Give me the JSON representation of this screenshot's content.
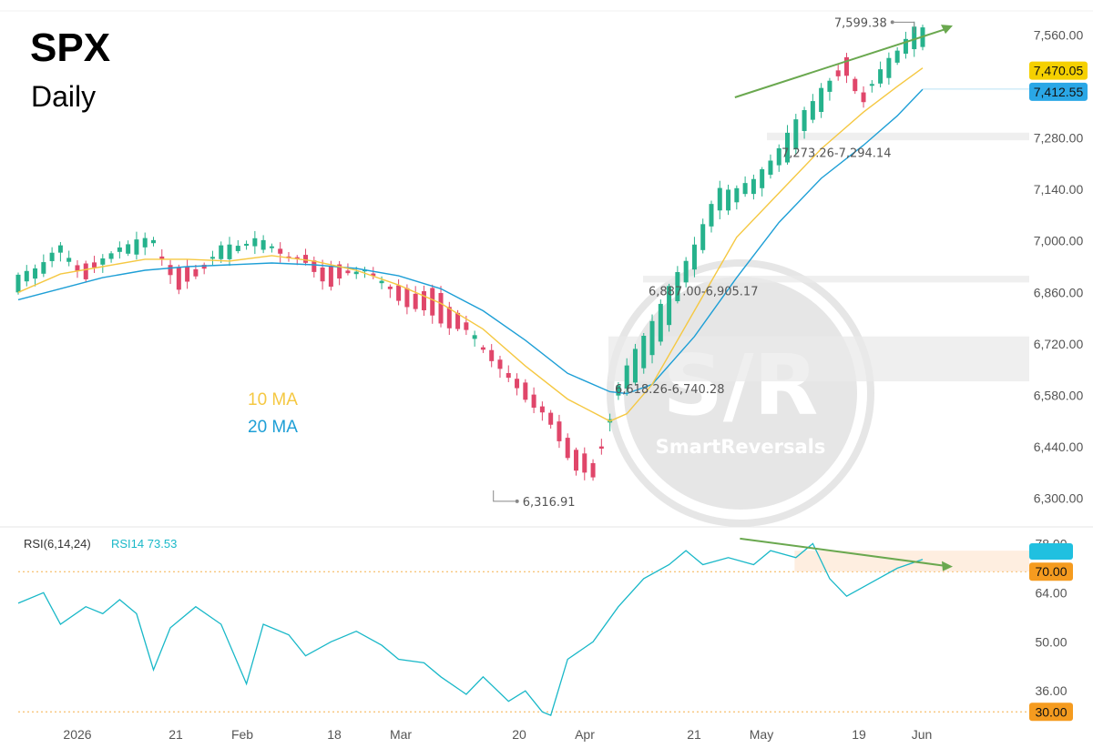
{
  "header": {
    "ticker": "SPX",
    "period": "Daily"
  },
  "legend": {
    "ma10": "10 MA",
    "ma20": "20 MA"
  },
  "watermark": {
    "big": "S/R",
    "small": "SmartReversals"
  },
  "colors": {
    "up": "#26b28c",
    "down": "#e0466a",
    "ma10": "#f5c842",
    "ma20": "#1e9fd6",
    "rsi": "#19b8c8",
    "arrow": "#6aa84f",
    "badge_ma10": "#f5d000",
    "badge_ma20": "#2aa7e6",
    "badge_level": "#f59b1f",
    "badge_rsi": "#20c0e0"
  },
  "chart_data": [
    {
      "type": "candlestick",
      "title": "SPX Daily",
      "y_ticks": [
        "7,560.00",
        "7,280.00",
        "7,140.00",
        "7,000.00",
        "6,860.00",
        "6,720.00",
        "6,580.00",
        "6,440.00",
        "6,300.00"
      ],
      "y_tick_values": [
        7560,
        7280,
        7140,
        7000,
        6860,
        6720,
        6580,
        6440,
        6300
      ],
      "ylim": [
        6240,
        7620
      ],
      "x_ticks": [
        "2026",
        "21",
        "Feb",
        "18",
        "Mar",
        "20",
        "Apr",
        "21",
        "May",
        "19",
        "Jun"
      ],
      "badges": {
        "ma10": "7,470.05",
        "ma20": "7,412.55"
      },
      "high_label": "7,599.38",
      "low_label": "6,316.91",
      "sr_zones": [
        {
          "label": "7,273.26-7,294.14",
          "range": [
            7273.26,
            7294.14
          ]
        },
        {
          "label": "6,887.00-6,905.17",
          "range": [
            6887.0,
            6905.17
          ]
        },
        {
          "label": "6,618.26-6,740.28",
          "range": [
            6618.26,
            6740.28
          ]
        }
      ],
      "anchors": [
        [
          0,
          6860,
          6900
        ],
        [
          5,
          6960,
          6980
        ],
        [
          8,
          6930,
          6900
        ],
        [
          12,
          6960,
          6990
        ],
        [
          16,
          6985,
          7005
        ],
        [
          19,
          6920,
          6860
        ],
        [
          24,
          6950,
          6980
        ],
        [
          28,
          6990,
          7005
        ],
        [
          33,
          6960,
          6950
        ],
        [
          37,
          6930,
          6880
        ],
        [
          41,
          6915,
          6930
        ],
        [
          45,
          6870,
          6840
        ],
        [
          50,
          6860,
          6780
        ],
        [
          54,
          6740,
          6740
        ],
        [
          58,
          6650,
          6620
        ],
        [
          62,
          6560,
          6530
        ],
        [
          66,
          6440,
          6380
        ],
        [
          68,
          6390,
          6350
        ],
        [
          71,
          6570,
          6610
        ],
        [
          75,
          6680,
          6790
        ],
        [
          79,
          6880,
          6950
        ],
        [
          83,
          7080,
          7140
        ],
        [
          87,
          7130,
          7160
        ],
        [
          91,
          7220,
          7290
        ],
        [
          95,
          7360,
          7420
        ],
        [
          98,
          7500,
          7450
        ],
        [
          100,
          7400,
          7380
        ],
        [
          103,
          7450,
          7500
        ],
        [
          106,
          7530,
          7575
        ]
      ],
      "ma10": [
        [
          0,
          6860
        ],
        [
          5,
          6910
        ],
        [
          10,
          6930
        ],
        [
          15,
          6950
        ],
        [
          20,
          6950
        ],
        [
          25,
          6945
        ],
        [
          30,
          6960
        ],
        [
          35,
          6945
        ],
        [
          40,
          6920
        ],
        [
          45,
          6880
        ],
        [
          50,
          6830
        ],
        [
          55,
          6760
        ],
        [
          60,
          6660
        ],
        [
          65,
          6570
        ],
        [
          70,
          6510
        ],
        [
          72,
          6530
        ],
        [
          75,
          6610
        ],
        [
          80,
          6810
        ],
        [
          85,
          7010
        ],
        [
          90,
          7130
        ],
        [
          95,
          7250
        ],
        [
          100,
          7350
        ],
        [
          104,
          7420
        ],
        [
          107,
          7470
        ]
      ],
      "ma20": [
        [
          0,
          6840
        ],
        [
          5,
          6870
        ],
        [
          10,
          6900
        ],
        [
          15,
          6920
        ],
        [
          20,
          6930
        ],
        [
          25,
          6935
        ],
        [
          30,
          6940
        ],
        [
          35,
          6935
        ],
        [
          40,
          6925
        ],
        [
          45,
          6905
        ],
        [
          50,
          6870
        ],
        [
          55,
          6810
        ],
        [
          60,
          6730
        ],
        [
          65,
          6640
        ],
        [
          70,
          6590
        ],
        [
          72,
          6585
        ],
        [
          75,
          6610
        ],
        [
          80,
          6740
        ],
        [
          85,
          6900
        ],
        [
          90,
          7050
        ],
        [
          95,
          7170
        ],
        [
          100,
          7260
        ],
        [
          104,
          7340
        ],
        [
          107,
          7412
        ]
      ],
      "trend_arrow": {
        "from": [
          85,
          7390
        ],
        "to": [
          107,
          7600
        ]
      }
    },
    {
      "type": "line",
      "title": "RSI(6,14,24)",
      "series": [
        {
          "name": "RSI14",
          "value_label": "73.53"
        }
      ],
      "y_ticks": [
        "78.00",
        "64.00",
        "50.00",
        "36.00"
      ],
      "y_tick_values": [
        78,
        64,
        50,
        36
      ],
      "levels": [
        "70.00",
        "30.00"
      ],
      "level_values": [
        70,
        30
      ],
      "ylim": [
        28,
        82
      ],
      "anchors": [
        [
          0,
          61
        ],
        [
          3,
          64
        ],
        [
          5,
          55
        ],
        [
          8,
          60
        ],
        [
          10,
          58
        ],
        [
          12,
          62
        ],
        [
          14,
          58
        ],
        [
          16,
          42
        ],
        [
          18,
          54
        ],
        [
          21,
          60
        ],
        [
          24,
          55
        ],
        [
          27,
          38
        ],
        [
          29,
          55
        ],
        [
          32,
          52
        ],
        [
          34,
          46
        ],
        [
          37,
          50
        ],
        [
          40,
          53
        ],
        [
          43,
          49
        ],
        [
          45,
          45
        ],
        [
          48,
          44
        ],
        [
          50,
          40
        ],
        [
          53,
          35
        ],
        [
          55,
          40
        ],
        [
          58,
          33
        ],
        [
          60,
          36
        ],
        [
          62,
          30
        ],
        [
          63,
          29
        ],
        [
          65,
          45
        ],
        [
          68,
          50
        ],
        [
          71,
          60
        ],
        [
          74,
          68
        ],
        [
          77,
          72
        ],
        [
          79,
          76
        ],
        [
          81,
          72
        ],
        [
          84,
          74
        ],
        [
          87,
          72
        ],
        [
          89,
          76
        ],
        [
          92,
          74
        ],
        [
          94,
          78
        ],
        [
          96,
          68
        ],
        [
          98,
          63
        ],
        [
          101,
          67
        ],
        [
          104,
          71
        ],
        [
          107,
          73.5
        ]
      ],
      "trend_arrow": {
        "from": [
          87,
          81
        ],
        "to": [
          107,
          72.5
        ]
      }
    }
  ]
}
